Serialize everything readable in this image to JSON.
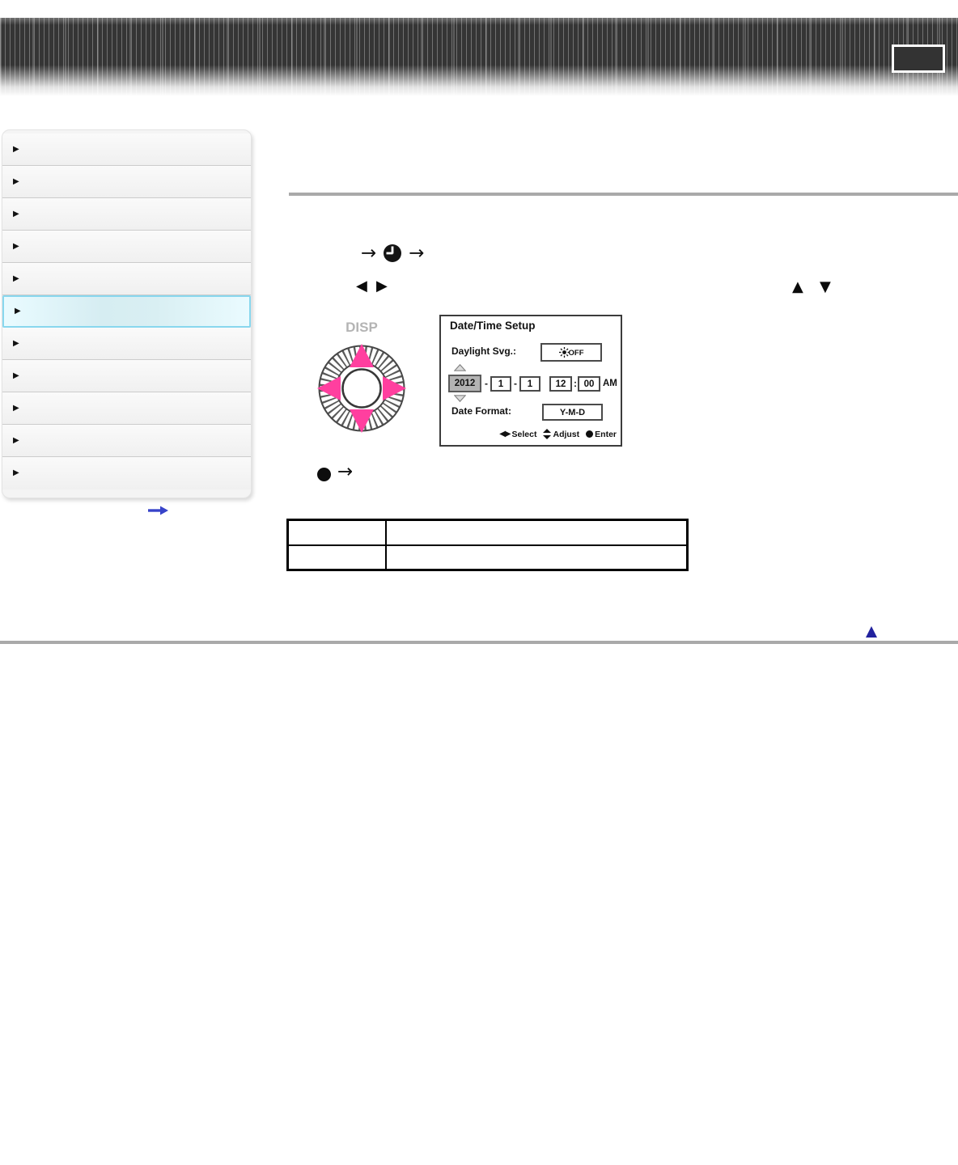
{
  "header": {
    "button_label": ""
  },
  "sidebar": {
    "items": [
      {
        "label": "",
        "active": false
      },
      {
        "label": "",
        "active": false
      },
      {
        "label": "",
        "active": false
      },
      {
        "label": "",
        "active": false
      },
      {
        "label": "",
        "active": false
      },
      {
        "label": "",
        "active": true
      },
      {
        "label": "",
        "active": false
      },
      {
        "label": "",
        "active": false
      },
      {
        "label": "",
        "active": false
      },
      {
        "label": "",
        "active": false
      },
      {
        "label": "",
        "active": false
      }
    ]
  },
  "icons": {
    "menu_arrow": "→",
    "marker": "▶",
    "key_left": "◀",
    "key_right": "▶",
    "key_up": "▲",
    "key_down": "▼",
    "select_keys": "◀▶"
  },
  "content": {
    "wheel": {
      "label": "DISP"
    },
    "screen": {
      "title": "Date/Time Setup",
      "daylight_label": "Daylight Svg.:",
      "daylight_value": "OFF",
      "date": {
        "year": "2012",
        "month": "1",
        "day": "1",
        "hour": "12",
        "minute": "00",
        "meridiem": "AM",
        "date_sep": "-",
        "time_sep": ":"
      },
      "format_label": "Date Format:",
      "format_value": "Y-M-D",
      "hint_select": "Select",
      "hint_adjust": "Adjust",
      "hint_enter": "Enter"
    },
    "table": {
      "rows": [
        {
          "c1": "",
          "c2": ""
        },
        {
          "c1": "",
          "c2": ""
        }
      ]
    }
  },
  "colors": {
    "accent_pink": "#ff3f9f",
    "highlight_border": "#88d7ee",
    "highlight_bg": "#d9eff3",
    "rule_gray": "#a9a9a9",
    "back_to_top_navy": "#22229e",
    "link_arrow_blue": "#3743c9"
  }
}
